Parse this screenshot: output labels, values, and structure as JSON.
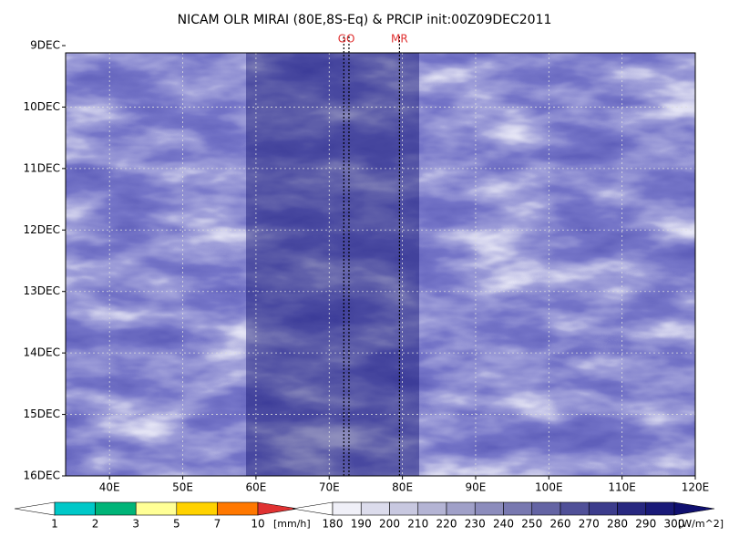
{
  "chart_data": {
    "type": "heatmap",
    "title": "NICAM OLR MIRAI (80E,8S-Eq) & PRCIP init:00Z09DEC2011",
    "xlim": [
      34,
      120
    ],
    "ylim": [
      9,
      16
    ],
    "xticks": [
      {
        "value": 40,
        "label": "40E"
      },
      {
        "value": 50,
        "label": "50E"
      },
      {
        "value": 60,
        "label": "60E"
      },
      {
        "value": 70,
        "label": "70E"
      },
      {
        "value": 80,
        "label": "80E"
      },
      {
        "value": 90,
        "label": "90E"
      },
      {
        "value": 100,
        "label": "100E"
      },
      {
        "value": 110,
        "label": "110E"
      },
      {
        "value": 120,
        "label": "120E"
      }
    ],
    "yticks": [
      {
        "value": 9,
        "label": "9DEC"
      },
      {
        "value": 10,
        "label": "10DEC"
      },
      {
        "value": 11,
        "label": "11DEC"
      },
      {
        "value": 12,
        "label": "12DEC"
      },
      {
        "value": 13,
        "label": "13DEC"
      },
      {
        "value": 14,
        "label": "14DEC"
      },
      {
        "value": 15,
        "label": "15DEC"
      },
      {
        "value": 16,
        "label": "16DEC"
      }
    ],
    "grid": true,
    "lines": [
      {
        "label": "GO",
        "x": [
          72.0,
          72.7
        ],
        "color": "#e03030"
      },
      {
        "label": "MR",
        "x": [
          79.6
        ],
        "color": "#e03030"
      }
    ],
    "precip_colorbar": {
      "unit": "[mm/h]",
      "bounds": [
        1,
        2,
        3,
        5,
        7,
        10
      ],
      "colors": [
        "#ffffff",
        "#00c8c8",
        "#00b478",
        "#ffff96",
        "#ffd200",
        "#ff7800",
        "#e03232"
      ]
    },
    "olr_colorbar": {
      "unit": "[W/m^2]",
      "bounds": [
        180,
        190,
        200,
        210,
        220,
        230,
        240,
        250,
        260,
        270,
        280,
        290,
        300
      ],
      "colors": [
        "#ffffff",
        "#f0f0f8",
        "#dcdcec",
        "#c8c8e0",
        "#b4b4d4",
        "#a0a0c8",
        "#8c8cbc",
        "#7878b0",
        "#6464a4",
        "#505098",
        "#3c3c8c",
        "#282880",
        "#1a1a78",
        "#101070"
      ]
    }
  }
}
